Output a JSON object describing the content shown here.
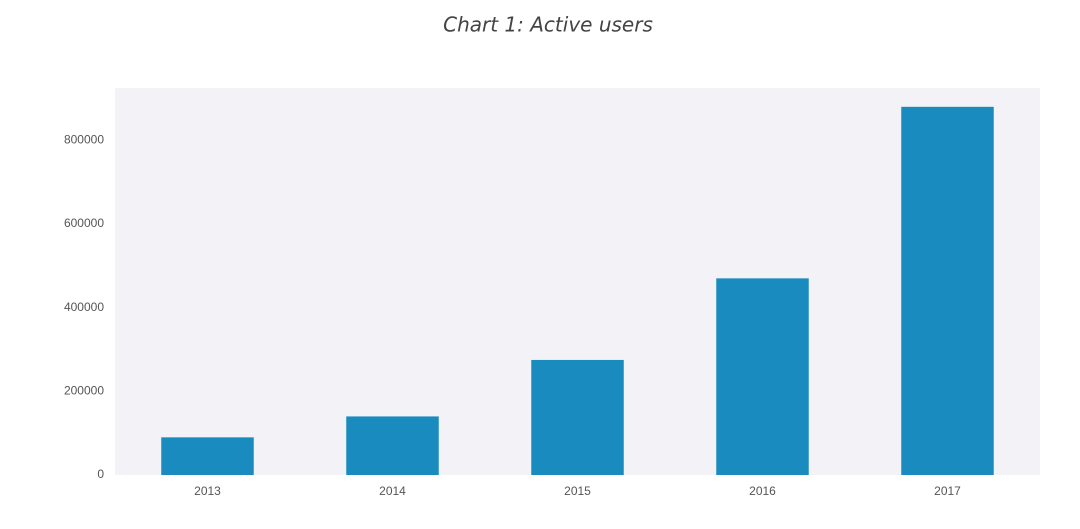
{
  "chart_data": {
    "type": "bar",
    "title": "Chart 1: Active users",
    "categories": [
      "2013",
      "2014",
      "2015",
      "2016",
      "2017"
    ],
    "values": [
      90000,
      140000,
      275000,
      470000,
      880000
    ],
    "color": "#1a8bbf",
    "ylim": [
      0,
      925000
    ],
    "yticks": [
      0,
      200000,
      400000,
      600000,
      800000
    ],
    "grid": false
  }
}
